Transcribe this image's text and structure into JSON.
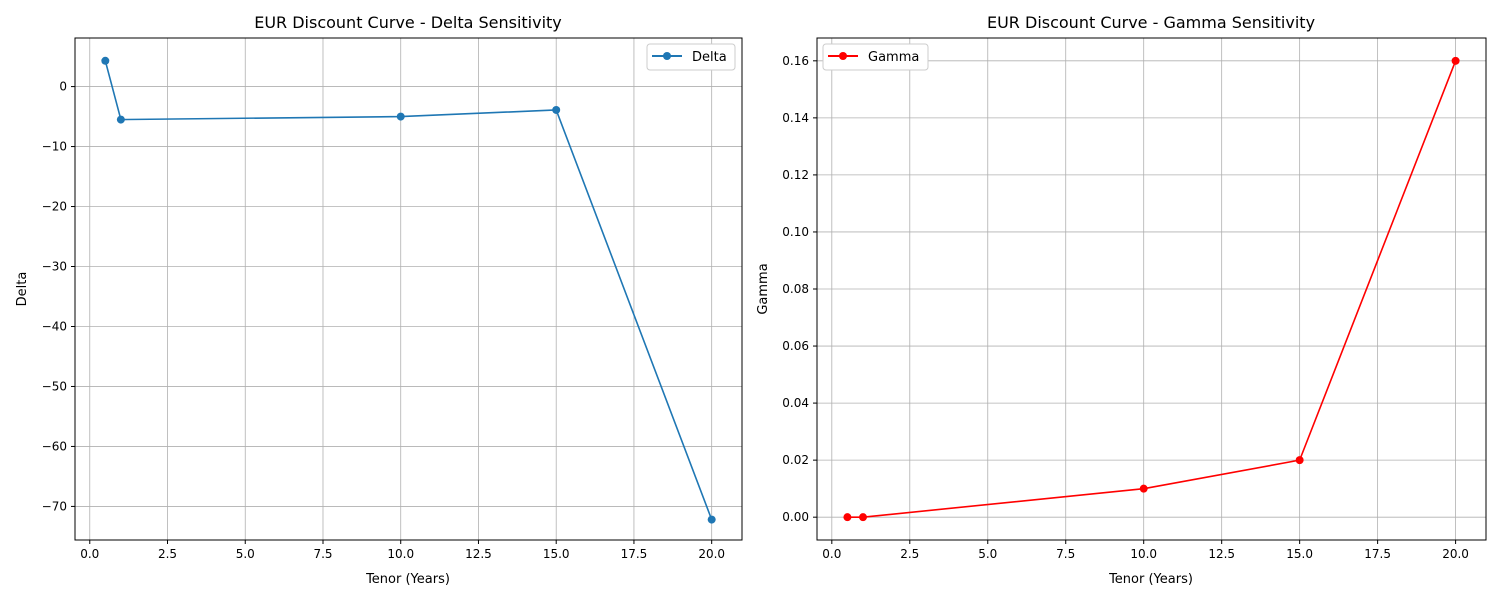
{
  "chart_data": [
    {
      "type": "line",
      "title": "EUR Discount Curve - Delta Sensitivity",
      "xlabel": "Tenor (Years)",
      "ylabel": "Delta",
      "xlim": [
        -0.475,
        20.975
      ],
      "ylim": [
        -75.6,
        8.1
      ],
      "xticks": [
        0.0,
        2.5,
        5.0,
        7.5,
        10.0,
        12.5,
        15.0,
        17.5,
        20.0
      ],
      "xtick_labels": [
        "0.0",
        "2.5",
        "5.0",
        "7.5",
        "10.0",
        "12.5",
        "15.0",
        "17.5",
        "20.0"
      ],
      "yticks": [
        0,
        -10,
        -20,
        -30,
        -40,
        -50,
        -60,
        -70
      ],
      "ytick_labels": [
        "0",
        "−10",
        "−20",
        "−30",
        "−40",
        "−50",
        "−60",
        "−70"
      ],
      "grid": true,
      "legend_position": "upper right",
      "series": [
        {
          "name": "Delta",
          "color": "#1f77b4",
          "marker": "circle",
          "x": [
            0.5,
            1,
            10,
            15,
            20
          ],
          "y": [
            4.3,
            -5.5,
            -5.0,
            -3.9,
            -72.2
          ]
        }
      ]
    },
    {
      "type": "line",
      "title": "EUR Discount Curve - Gamma Sensitivity",
      "xlabel": "Tenor (Years)",
      "ylabel": "Gamma",
      "xlim": [
        -0.475,
        20.975
      ],
      "ylim": [
        -0.008,
        0.168
      ],
      "xticks": [
        0.0,
        2.5,
        5.0,
        7.5,
        10.0,
        12.5,
        15.0,
        17.5,
        20.0
      ],
      "xtick_labels": [
        "0.0",
        "2.5",
        "5.0",
        "7.5",
        "10.0",
        "12.5",
        "15.0",
        "17.5",
        "20.0"
      ],
      "yticks": [
        0.0,
        0.02,
        0.04,
        0.06,
        0.08,
        0.1,
        0.12,
        0.14,
        0.16
      ],
      "ytick_labels": [
        "0.00",
        "0.02",
        "0.04",
        "0.06",
        "0.08",
        "0.10",
        "0.12",
        "0.14",
        "0.16"
      ],
      "grid": true,
      "legend_position": "upper left",
      "series": [
        {
          "name": "Gamma",
          "color": "#ff0000",
          "marker": "circle",
          "x": [
            0.5,
            1,
            10,
            15,
            20
          ],
          "y": [
            0.0,
            0.0,
            0.01,
            0.02,
            0.16
          ]
        }
      ]
    }
  ]
}
